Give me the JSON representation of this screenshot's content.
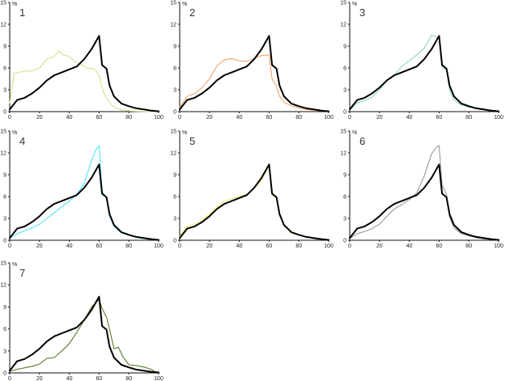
{
  "chart_data": [
    {
      "type": "line",
      "panel_label": "1",
      "unit_label": "%",
      "xlim": [
        0,
        100
      ],
      "ylim": [
        0,
        15
      ],
      "xticks": [
        "0",
        "20",
        "40",
        "60",
        "80",
        "100"
      ],
      "yticks": [
        "0",
        "3",
        "6",
        "9",
        "12",
        "15"
      ],
      "series": [
        {
          "color": "#d2e08a",
          "x": [
            0,
            3,
            8,
            15,
            20,
            25,
            30,
            33,
            36,
            40,
            44,
            48,
            52,
            56,
            58,
            60,
            63,
            66,
            70,
            75,
            80,
            85,
            90,
            95,
            100
          ],
          "y": [
            1.2,
            5.2,
            5.5,
            5.6,
            6.0,
            7.2,
            7.6,
            8.3,
            7.8,
            7.6,
            6.8,
            6.5,
            6.0,
            5.9,
            5.6,
            5.0,
            2.6,
            1.5,
            0.6,
            0.25,
            0.1,
            0.05,
            0.02,
            0.01,
            0
          ]
        },
        {
          "color": "#000000",
          "x": [
            0,
            5,
            10,
            15,
            20,
            25,
            30,
            35,
            40,
            45,
            50,
            55,
            60,
            62,
            65,
            67,
            70,
            75,
            80,
            85,
            90,
            95,
            100
          ],
          "y": [
            0.3,
            1.6,
            1.9,
            2.5,
            3.3,
            4.3,
            5.0,
            5.4,
            5.8,
            6.2,
            7.2,
            8.6,
            10.4,
            6.4,
            5.9,
            3.6,
            2.1,
            1.1,
            0.75,
            0.45,
            0.3,
            0.15,
            0.05
          ]
        }
      ]
    },
    {
      "type": "line",
      "panel_label": "2",
      "unit_label": "%",
      "xlim": [
        0,
        100
      ],
      "ylim": [
        0,
        15
      ],
      "xticks": [
        "0",
        "20",
        "40",
        "60",
        "80",
        "100"
      ],
      "yticks": [
        "0",
        "3",
        "6",
        "9",
        "12",
        "15"
      ],
      "series": [
        {
          "color": "#f2a36a",
          "x": [
            0,
            5,
            10,
            15,
            20,
            25,
            30,
            35,
            40,
            45,
            50,
            55,
            60,
            62,
            65,
            67,
            70,
            75,
            80,
            85,
            90,
            95,
            100
          ],
          "y": [
            0.6,
            2.1,
            2.5,
            3.3,
            4.5,
            6.3,
            7.1,
            7.3,
            7.0,
            6.9,
            7.3,
            7.7,
            7.8,
            4.5,
            3.5,
            2.1,
            1.3,
            0.8,
            0.5,
            0.3,
            0.2,
            0.1,
            0.05
          ]
        },
        {
          "color": "#000000",
          "x": [
            0,
            5,
            10,
            15,
            20,
            25,
            30,
            35,
            40,
            45,
            50,
            55,
            60,
            62,
            65,
            67,
            70,
            75,
            80,
            85,
            90,
            95,
            100
          ],
          "y": [
            0.3,
            1.6,
            1.9,
            2.5,
            3.3,
            4.3,
            5.0,
            5.4,
            5.8,
            6.2,
            7.2,
            8.6,
            10.4,
            6.4,
            5.9,
            3.6,
            2.1,
            1.1,
            0.75,
            0.45,
            0.3,
            0.15,
            0.05
          ]
        }
      ]
    },
    {
      "type": "line",
      "panel_label": "3",
      "unit_label": "%",
      "xlim": [
        0,
        100
      ],
      "ylim": [
        0,
        15
      ],
      "xticks": [
        "0",
        "20",
        "40",
        "60",
        "80",
        "100"
      ],
      "yticks": [
        "0",
        "3",
        "6",
        "9",
        "12",
        "15"
      ],
      "series": [
        {
          "color": "#8fd3c2",
          "x": [
            0,
            5,
            10,
            15,
            20,
            25,
            30,
            35,
            40,
            45,
            50,
            55,
            60,
            62,
            65,
            67,
            70,
            75,
            80,
            85,
            90,
            95,
            100
          ],
          "y": [
            0.2,
            1.2,
            1.5,
            2.0,
            3.0,
            4.3,
            5.0,
            6.2,
            7.0,
            7.8,
            8.7,
            10.5,
            10.1,
            6.0,
            5.8,
            3.0,
            1.6,
            0.9,
            0.6,
            0.4,
            0.25,
            0.1,
            0.05
          ]
        },
        {
          "color": "#000000",
          "x": [
            0,
            5,
            10,
            15,
            20,
            25,
            30,
            35,
            40,
            45,
            50,
            55,
            60,
            62,
            65,
            67,
            70,
            75,
            80,
            85,
            90,
            95,
            100
          ],
          "y": [
            0.3,
            1.6,
            1.9,
            2.5,
            3.3,
            4.3,
            5.0,
            5.4,
            5.8,
            6.2,
            7.2,
            8.6,
            10.4,
            6.4,
            5.9,
            3.6,
            2.1,
            1.1,
            0.75,
            0.45,
            0.3,
            0.15,
            0.05
          ]
        }
      ]
    },
    {
      "type": "line",
      "panel_label": "4",
      "unit_label": "%",
      "xlim": [
        0,
        100
      ],
      "ylim": [
        0,
        15
      ],
      "xticks": [
        "0",
        "20",
        "40",
        "60",
        "80",
        "100"
      ],
      "yticks": [
        "0",
        "3",
        "6",
        "9",
        "12",
        "15"
      ],
      "series": [
        {
          "color": "#4ee6f2",
          "x": [
            0,
            5,
            10,
            15,
            20,
            25,
            30,
            35,
            40,
            45,
            50,
            55,
            58,
            60,
            62,
            65,
            67,
            70,
            75,
            80,
            85,
            90,
            95,
            100
          ],
          "y": [
            0.3,
            0.9,
            1.3,
            1.7,
            2.2,
            3.0,
            3.8,
            4.6,
            5.4,
            6.3,
            7.8,
            11.0,
            12.5,
            13.0,
            6.8,
            5.8,
            3.3,
            1.9,
            1.0,
            0.7,
            0.4,
            0.25,
            0.1,
            0.05
          ]
        },
        {
          "color": "#000000",
          "x": [
            0,
            5,
            10,
            15,
            20,
            25,
            30,
            35,
            40,
            45,
            50,
            55,
            60,
            62,
            65,
            67,
            70,
            75,
            80,
            85,
            90,
            95,
            100
          ],
          "y": [
            0.3,
            1.6,
            1.9,
            2.5,
            3.3,
            4.3,
            5.0,
            5.4,
            5.8,
            6.2,
            7.2,
            8.6,
            10.4,
            6.4,
            5.9,
            3.6,
            2.1,
            1.1,
            0.75,
            0.45,
            0.3,
            0.15,
            0.05
          ]
        }
      ]
    },
    {
      "type": "line",
      "panel_label": "5",
      "unit_label": "%",
      "xlim": [
        0,
        100
      ],
      "ylim": [
        0,
        15
      ],
      "xticks": [
        "0",
        "20",
        "40",
        "60",
        "80",
        "100"
      ],
      "yticks": [
        "0",
        "3",
        "6",
        "9",
        "12",
        "15"
      ],
      "series": [
        {
          "color": "#f0e96e",
          "x": [
            0,
            5,
            10,
            15,
            20,
            25,
            30,
            35,
            40,
            45,
            50,
            55,
            60,
            62,
            65,
            67,
            70,
            75,
            80,
            85,
            90,
            95,
            100
          ],
          "y": [
            0.5,
            1.9,
            2.2,
            2.8,
            3.6,
            4.6,
            5.4,
            5.7,
            6.0,
            6.3,
            7.1,
            8.3,
            10.2,
            6.2,
            5.8,
            3.4,
            2.0,
            1.0,
            0.7,
            0.4,
            0.25,
            0.1,
            0.05
          ]
        },
        {
          "color": "#000000",
          "x": [
            0,
            5,
            10,
            15,
            20,
            25,
            30,
            35,
            40,
            45,
            50,
            55,
            60,
            62,
            65,
            67,
            70,
            75,
            80,
            85,
            90,
            95,
            100
          ],
          "y": [
            0.3,
            1.6,
            1.9,
            2.5,
            3.3,
            4.3,
            5.0,
            5.4,
            5.8,
            6.2,
            7.2,
            8.6,
            10.4,
            6.4,
            5.9,
            3.6,
            2.1,
            1.1,
            0.75,
            0.45,
            0.3,
            0.15,
            0.05
          ]
        }
      ]
    },
    {
      "type": "line",
      "panel_label": "6",
      "unit_label": "%",
      "xlim": [
        0,
        100
      ],
      "ylim": [
        0,
        15
      ],
      "xticks": [
        "0",
        "20",
        "40",
        "60",
        "80",
        "100"
      ],
      "yticks": [
        "0",
        "3",
        "6",
        "9",
        "12",
        "15"
      ],
      "series": [
        {
          "color": "#999999",
          "x": [
            0,
            5,
            10,
            15,
            20,
            25,
            30,
            35,
            40,
            45,
            50,
            55,
            58,
            60,
            62,
            65,
            67,
            70,
            75,
            80,
            85,
            90,
            95,
            100
          ],
          "y": [
            0.2,
            0.9,
            1.2,
            1.6,
            2.2,
            3.3,
            4.3,
            4.9,
            5.6,
            6.5,
            8.8,
            11.9,
            12.7,
            13.0,
            7.6,
            6.3,
            3.2,
            1.7,
            0.9,
            0.6,
            0.35,
            0.2,
            0.1,
            0.05
          ]
        },
        {
          "color": "#000000",
          "x": [
            0,
            5,
            10,
            15,
            20,
            25,
            30,
            35,
            40,
            45,
            50,
            55,
            60,
            62,
            65,
            67,
            70,
            75,
            80,
            85,
            90,
            95,
            100
          ],
          "y": [
            0.3,
            1.6,
            1.9,
            2.5,
            3.3,
            4.3,
            5.0,
            5.4,
            5.8,
            6.2,
            7.2,
            8.6,
            10.4,
            6.4,
            5.9,
            3.6,
            2.1,
            1.1,
            0.75,
            0.45,
            0.3,
            0.15,
            0.05
          ]
        }
      ]
    },
    {
      "type": "line",
      "panel_label": "7",
      "unit_label": "%",
      "xlim": [
        0,
        100
      ],
      "ylim": [
        0,
        15
      ],
      "xticks": [
        "0",
        "20",
        "40",
        "60",
        "80",
        "100"
      ],
      "yticks": [
        "0",
        "3",
        "6",
        "9",
        "12",
        "15"
      ],
      "series": [
        {
          "color": "#5a7a2e",
          "x": [
            0,
            5,
            10,
            15,
            20,
            25,
            30,
            35,
            40,
            45,
            50,
            55,
            60,
            62,
            65,
            67,
            70,
            73,
            76,
            80,
            85,
            90,
            95,
            98
          ],
          "y": [
            0.2,
            0.5,
            0.7,
            0.9,
            1.2,
            2.0,
            2.1,
            3.0,
            4.0,
            5.5,
            7.2,
            9.0,
            10.0,
            8.8,
            7.6,
            6.0,
            3.3,
            3.5,
            2.2,
            1.1,
            1.0,
            0.8,
            0.5,
            0.1
          ]
        },
        {
          "color": "#000000",
          "x": [
            0,
            5,
            10,
            15,
            20,
            25,
            30,
            35,
            40,
            45,
            50,
            55,
            60,
            62,
            65,
            67,
            70,
            75,
            80,
            85,
            90,
            95,
            100
          ],
          "y": [
            0.3,
            1.6,
            1.9,
            2.5,
            3.3,
            4.3,
            5.0,
            5.4,
            5.8,
            6.2,
            7.2,
            8.6,
            10.4,
            6.4,
            5.9,
            3.6,
            2.1,
            1.1,
            0.75,
            0.45,
            0.3,
            0.15,
            0.05
          ]
        }
      ]
    }
  ]
}
